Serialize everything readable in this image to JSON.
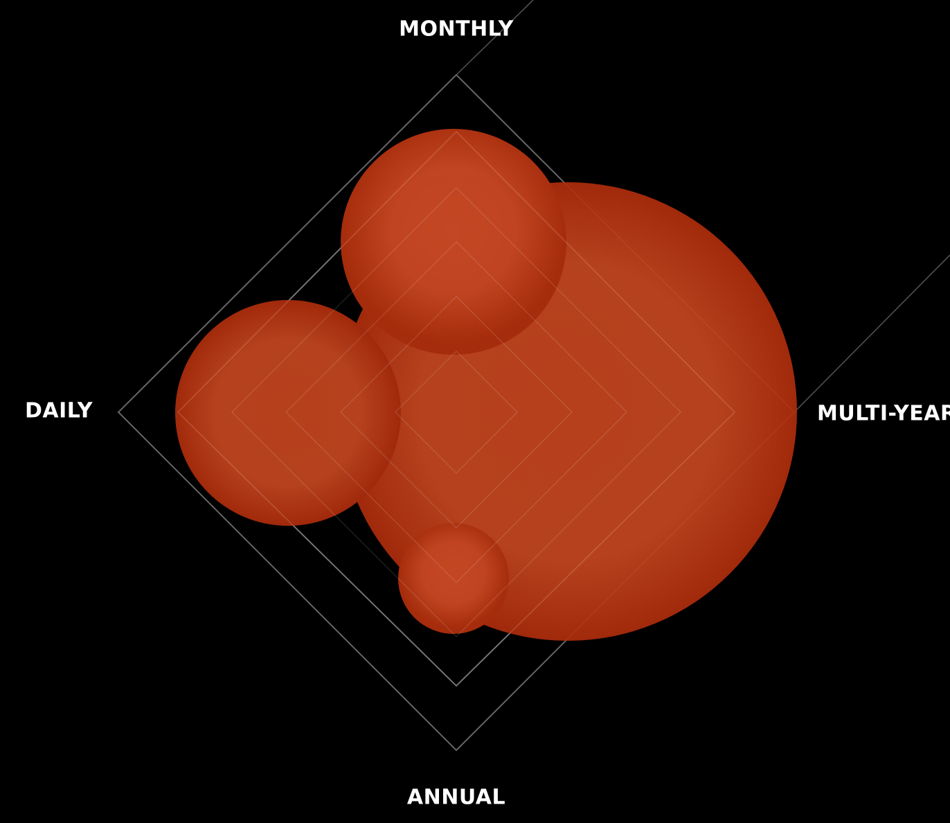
{
  "axes": [
    "MONTHLY",
    "MULTI-YEAR",
    "ANNUAL",
    "DAILY"
  ]
}
